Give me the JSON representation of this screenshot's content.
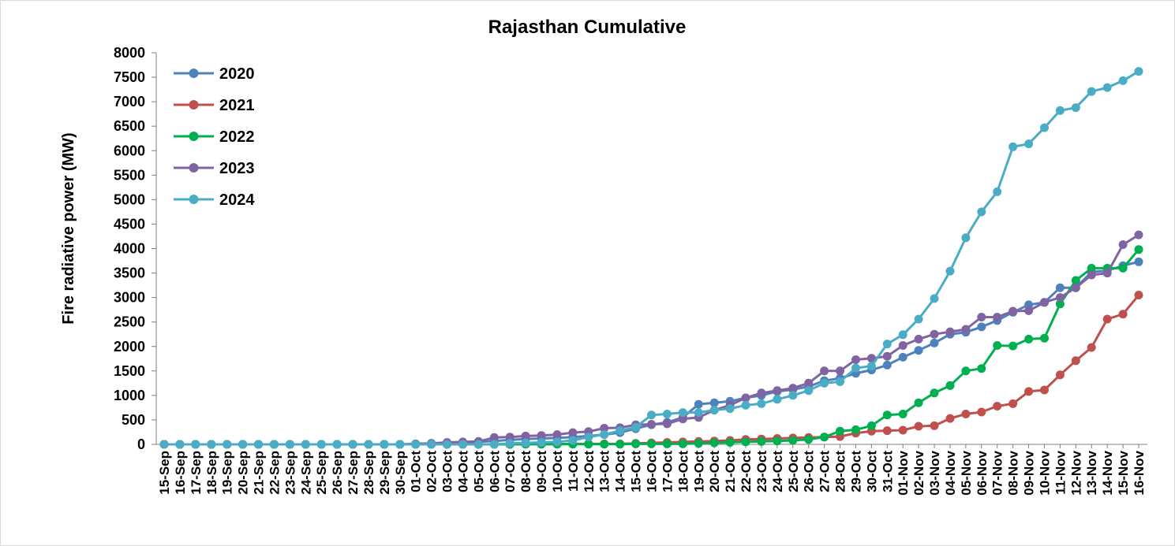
{
  "chart_data": {
    "type": "line",
    "title": "Rajasthan Cumulative",
    "xlabel": "",
    "ylabel": "Fire radiative power (MW)",
    "ylim": [
      0,
      8000
    ],
    "yticks": [
      0,
      500,
      1000,
      1500,
      2000,
      2500,
      3000,
      3500,
      4000,
      4500,
      5000,
      5500,
      6000,
      6500,
      7000,
      7500,
      8000
    ],
    "grid": false,
    "legend_position": "top-left",
    "categories": [
      "15-Sep",
      "16-Sep",
      "17-Sep",
      "18-Sep",
      "19-Sep",
      "20-Sep",
      "21-Sep",
      "22-Sep",
      "23-Sep",
      "24-Sep",
      "25-Sep",
      "26-Sep",
      "27-Sep",
      "28-Sep",
      "29-Sep",
      "30-Sep",
      "01-Oct",
      "02-Oct",
      "03-Oct",
      "04-Oct",
      "05-Oct",
      "06-Oct",
      "07-Oct",
      "08-Oct",
      "09-Oct",
      "10-Oct",
      "11-Oct",
      "12-Oct",
      "13-Oct",
      "14-Oct",
      "15-Oct",
      "16-Oct",
      "17-Oct",
      "18-Oct",
      "19-Oct",
      "20-Oct",
      "21-Oct",
      "22-Oct",
      "23-Oct",
      "24-Oct",
      "25-Oct",
      "26-Oct",
      "27-Oct",
      "28-Oct",
      "29-Oct",
      "30-Oct",
      "31-Oct",
      "01-Nov",
      "02-Nov",
      "03-Nov",
      "04-Nov",
      "05-Nov",
      "06-Nov",
      "07-Nov",
      "08-Nov",
      "09-Nov",
      "10-Nov",
      "11-Nov",
      "12-Nov",
      "13-Nov",
      "14-Nov",
      "15-Nov",
      "16-Nov"
    ],
    "series": [
      {
        "name": "2020",
        "color": "#4f81bd",
        "values": [
          0,
          0,
          0,
          0,
          0,
          0,
          0,
          0,
          0,
          0,
          0,
          0,
          0,
          0,
          0,
          0,
          10,
          20,
          30,
          40,
          50,
          70,
          90,
          110,
          120,
          130,
          150,
          170,
          200,
          240,
          320,
          400,
          450,
          550,
          820,
          850,
          880,
          950,
          1000,
          1080,
          1120,
          1180,
          1300,
          1350,
          1450,
          1520,
          1620,
          1780,
          1920,
          2070,
          2250,
          2290,
          2400,
          2530,
          2700,
          2850,
          2900,
          3200,
          3200,
          3520,
          3550,
          3650,
          3730
        ]
      },
      {
        "name": "2021",
        "color": "#c0504d",
        "values": [
          0,
          0,
          0,
          0,
          0,
          0,
          0,
          0,
          0,
          0,
          0,
          0,
          0,
          0,
          0,
          0,
          0,
          0,
          0,
          0,
          0,
          0,
          0,
          5,
          5,
          5,
          10,
          10,
          10,
          10,
          20,
          30,
          40,
          50,
          60,
          70,
          80,
          100,
          110,
          120,
          130,
          140,
          150,
          160,
          230,
          270,
          280,
          290,
          370,
          380,
          530,
          620,
          660,
          780,
          830,
          1080,
          1110,
          1420,
          1710,
          1980,
          2560,
          2660,
          3050
        ]
      },
      {
        "name": "2022",
        "color": "#00b050",
        "values": [
          0,
          0,
          0,
          0,
          0,
          0,
          0,
          0,
          0,
          0,
          0,
          0,
          0,
          0,
          0,
          0,
          0,
          0,
          0,
          0,
          0,
          0,
          0,
          5,
          5,
          5,
          5,
          5,
          5,
          5,
          10,
          10,
          10,
          10,
          20,
          30,
          40,
          50,
          60,
          70,
          80,
          100,
          150,
          270,
          300,
          380,
          600,
          620,
          850,
          1050,
          1200,
          1500,
          1550,
          2020,
          2010,
          2150,
          2170,
          2870,
          3350,
          3600,
          3600,
          3600,
          3980
        ]
      },
      {
        "name": "2023",
        "color": "#8064a2",
        "values": [
          0,
          0,
          0,
          0,
          0,
          0,
          0,
          0,
          0,
          0,
          0,
          0,
          0,
          0,
          0,
          0,
          10,
          20,
          40,
          50,
          60,
          140,
          150,
          170,
          180,
          200,
          240,
          260,
          330,
          340,
          400,
          410,
          420,
          520,
          550,
          700,
          800,
          950,
          1050,
          1100,
          1150,
          1250,
          1500,
          1500,
          1730,
          1760,
          1800,
          2020,
          2150,
          2250,
          2300,
          2350,
          2600,
          2600,
          2720,
          2730,
          2900,
          3000,
          3200,
          3460,
          3500,
          4080,
          4280
        ]
      },
      {
        "name": "2024",
        "color": "#4bacc6",
        "values": [
          0,
          0,
          0,
          0,
          0,
          0,
          0,
          0,
          0,
          0,
          0,
          0,
          0,
          0,
          0,
          0,
          0,
          0,
          0,
          0,
          0,
          0,
          20,
          30,
          40,
          50,
          80,
          150,
          200,
          280,
          350,
          600,
          620,
          650,
          650,
          700,
          730,
          800,
          830,
          920,
          1000,
          1100,
          1250,
          1280,
          1560,
          1600,
          2050,
          2240,
          2560,
          2980,
          3540,
          4220,
          4750,
          5160,
          6080,
          6140,
          6470,
          6820,
          6880,
          7210,
          7290,
          7430,
          7620
        ]
      }
    ]
  }
}
